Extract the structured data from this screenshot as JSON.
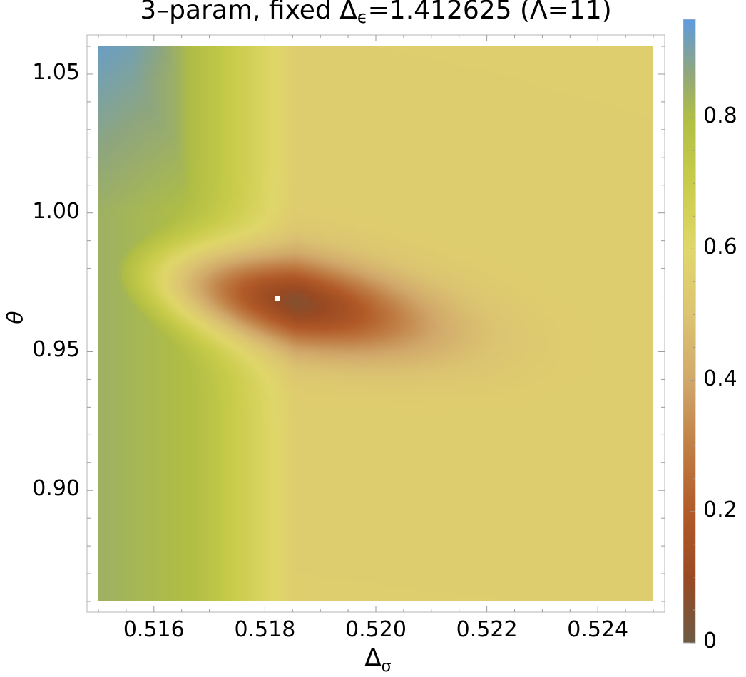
{
  "chart_data": {
    "type": "heatmap",
    "title_main": "3–param, fixed Δ",
    "title_sub": "ϵ",
    "title_rest": "=1.412625 (Λ=11)",
    "xlabel_main": "Δ",
    "xlabel_sub": "σ",
    "ylabel": "θ",
    "xlim": [
      0.515,
      0.525
    ],
    "ylim": [
      0.86,
      1.06
    ],
    "x_ticks": [
      0.516,
      0.518,
      0.52,
      0.522,
      0.524
    ],
    "x_tick_labels": [
      "0.516",
      "0.518",
      "0.520",
      "0.522",
      "0.524"
    ],
    "y_ticks": [
      0.9,
      0.95,
      1.0,
      1.05
    ],
    "y_tick_labels": [
      "0.90",
      "0.95",
      "1.00",
      "1.05"
    ],
    "colorbar": {
      "range": [
        0,
        0.95
      ],
      "ticks": [
        0,
        0.2,
        0.4,
        0.6,
        0.8
      ],
      "tick_labels": [
        "0",
        "0.2",
        "0.4",
        "0.6",
        "0.8"
      ],
      "colors": [
        {
          "value": 0.0,
          "color": "#6b5a44"
        },
        {
          "value": 0.1,
          "color": "#9a4a22"
        },
        {
          "value": 0.2,
          "color": "#b25a28"
        },
        {
          "value": 0.3,
          "color": "#c07f45"
        },
        {
          "value": 0.4,
          "color": "#d1a86a"
        },
        {
          "value": 0.5,
          "color": "#dcc472"
        },
        {
          "value": 0.6,
          "color": "#e0d76a"
        },
        {
          "value": 0.7,
          "color": "#c9cc4a"
        },
        {
          "value": 0.8,
          "color": "#b0be45"
        },
        {
          "value": 0.87,
          "color": "#8fa67e"
        },
        {
          "value": 0.95,
          "color": "#5d9be0"
        }
      ]
    },
    "minimum": {
      "x": 0.51822,
      "y": 0.969,
      "value": 0.0
    }
  }
}
